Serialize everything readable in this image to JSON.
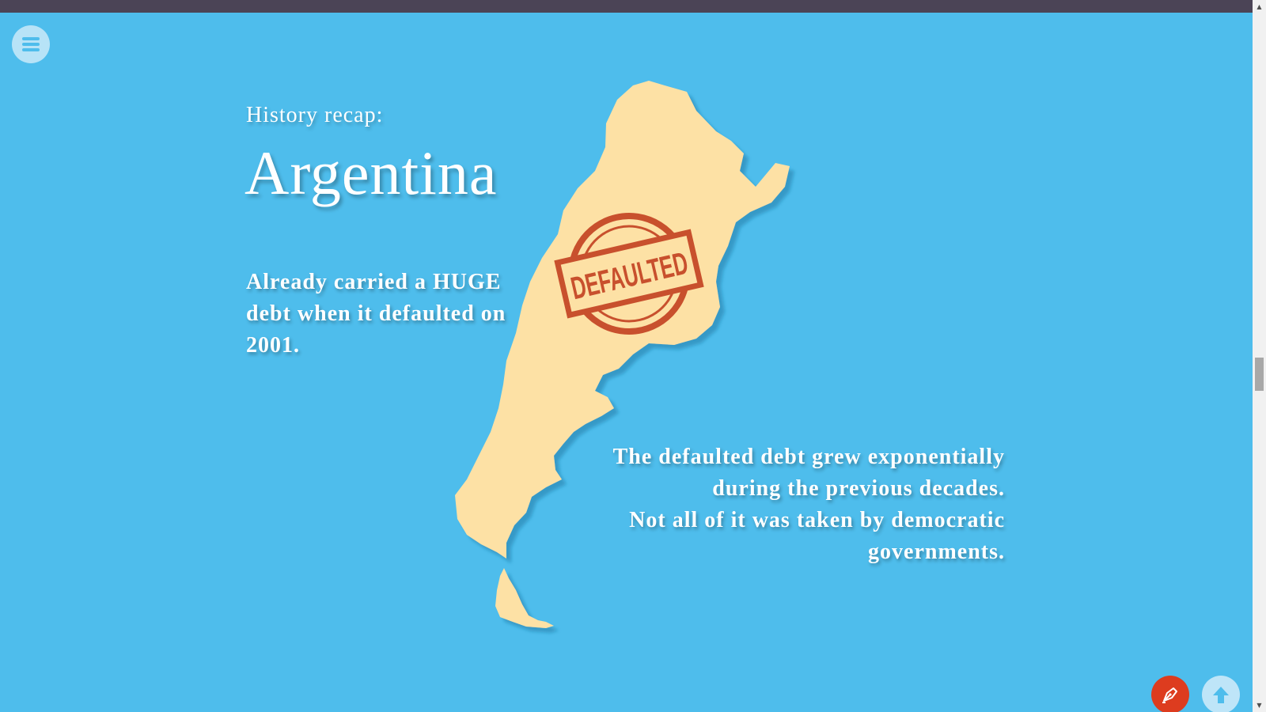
{
  "slide": {
    "kicker": "History recap:",
    "title": "Argentina",
    "stamp_text": "DEFAULTED",
    "paragraph_left": "Already carried a HUGE debt when it defaulted on 2001.",
    "paragraph_right_1": "The defaulted debt grew exponentially during the previous decades.",
    "paragraph_right_2": "Not all of it was taken by democratic governments."
  },
  "icons": {
    "menu": "hamburger-menu-icon",
    "pen": "pen-nib-icon",
    "up": "arrow-up-icon",
    "map": "argentina-map"
  },
  "colors": {
    "background": "#4ebdec",
    "topbar": "#4b4456",
    "map_fill": "#fde1a5",
    "stamp": "#c8502d",
    "accent_red": "#dd3c1f",
    "text": "#ffffff"
  }
}
